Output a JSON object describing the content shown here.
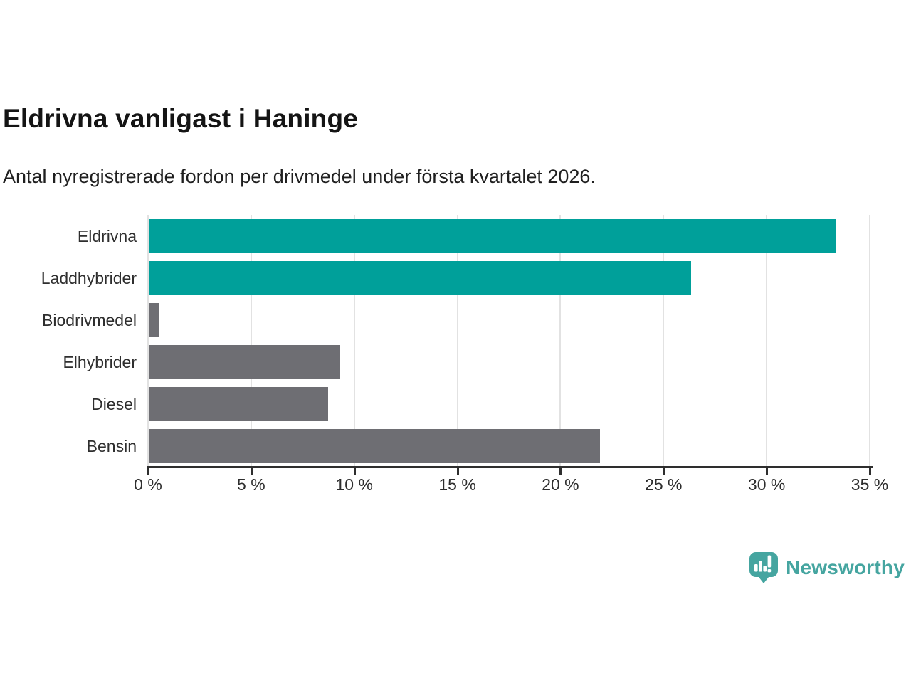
{
  "chart_data": {
    "type": "bar",
    "orientation": "horizontal",
    "title": "Eldrivna vanligast i Haninge",
    "subtitle": "Antal nyregistrerade fordon per drivmedel under första kvartalet 2026.",
    "categories": [
      "Eldrivna",
      "Laddhybrider",
      "Biodrivmedel",
      "Elhybrider",
      "Diesel",
      "Bensin"
    ],
    "values": [
      33.3,
      26.3,
      0.5,
      9.3,
      8.7,
      21.9
    ],
    "unit": "%",
    "bar_colors": [
      "#00a09a",
      "#00a09a",
      "#6e6e73",
      "#6e6e73",
      "#6e6e73",
      "#6e6e73"
    ],
    "xlabel": "",
    "ylabel": "",
    "xlim": [
      0,
      35
    ],
    "x_ticks": [
      0,
      5,
      10,
      15,
      20,
      25,
      30,
      35
    ],
    "x_tick_labels": [
      "0 %",
      "5 %",
      "10 %",
      "15 %",
      "20 %",
      "25 %",
      "30 %",
      "35 %"
    ],
    "grid": "vertical-gridlines-on",
    "legend": "none"
  },
  "branding": {
    "logo_text": "Newsworthy",
    "logo_icon": "newsworthy-speech-bubble-bar-chart-icon",
    "logo_color": "#45a5a0"
  },
  "colors": {
    "accent_teal": "#00a09a",
    "neutral_gray": "#6e6e73",
    "gridline": "#e2e2e2",
    "axis": "#2e2e2e",
    "background": "#ffffff"
  }
}
